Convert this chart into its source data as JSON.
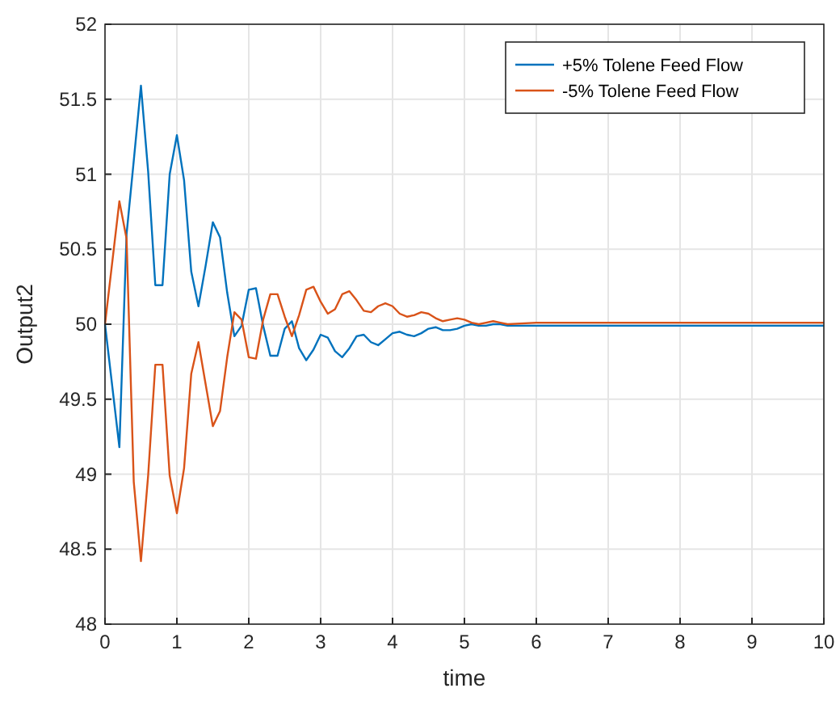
{
  "chart_data": {
    "type": "line",
    "xlabel": "time",
    "ylabel": "Output2",
    "x": [
      0,
      0.2,
      0.3,
      0.4,
      0.5,
      0.6,
      0.7,
      0.8,
      0.9,
      1.0,
      1.1,
      1.2,
      1.3,
      1.4,
      1.5,
      1.6,
      1.7,
      1.8,
      1.9,
      2.0,
      2.1,
      2.2,
      2.3,
      2.4,
      2.5,
      2.6,
      2.7,
      2.8,
      2.9,
      3.0,
      3.1,
      3.2,
      3.3,
      3.4,
      3.5,
      3.6,
      3.7,
      3.8,
      3.9,
      4.0,
      4.1,
      4.2,
      4.3,
      4.4,
      4.5,
      4.6,
      4.7,
      4.8,
      4.9,
      5.0,
      5.1,
      5.2,
      5.3,
      5.4,
      5.5,
      5.6,
      6,
      7,
      8,
      9,
      10
    ],
    "series": [
      {
        "name": "+5% Tolene Feed Flow",
        "color": "#0072bd",
        "values": [
          50,
          49.18,
          50.6,
          51.09,
          51.59,
          51.02,
          50.26,
          50.26,
          51.0,
          51.26,
          50.96,
          50.35,
          50.12,
          50.39,
          50.68,
          50.58,
          50.21,
          49.92,
          49.99,
          50.23,
          50.24,
          49.99,
          49.79,
          49.79,
          49.97,
          50.02,
          49.84,
          49.76,
          49.83,
          49.93,
          49.91,
          49.82,
          49.78,
          49.84,
          49.92,
          49.93,
          49.88,
          49.86,
          49.9,
          49.94,
          49.95,
          49.93,
          49.92,
          49.94,
          49.97,
          49.98,
          49.96,
          49.96,
          49.97,
          49.99,
          50.0,
          49.99,
          49.99,
          50.0,
          50.0,
          49.99,
          49.99,
          49.99,
          49.99,
          49.99,
          49.99
        ]
      },
      {
        "name": "-5% Tolene Feed Flow",
        "color": "#d95319",
        "values": [
          50,
          50.82,
          50.57,
          48.95,
          48.42,
          48.99,
          49.73,
          49.73,
          48.99,
          48.74,
          49.04,
          49.67,
          49.88,
          49.6,
          49.32,
          49.42,
          49.78,
          50.08,
          50.03,
          49.78,
          49.77,
          50.03,
          50.2,
          50.2,
          50.05,
          49.92,
          50.06,
          50.23,
          50.25,
          50.15,
          50.07,
          50.1,
          50.2,
          50.22,
          50.16,
          50.09,
          50.08,
          50.12,
          50.14,
          50.12,
          50.07,
          50.05,
          50.06,
          50.08,
          50.07,
          50.04,
          50.02,
          50.03,
          50.04,
          50.03,
          50.01,
          50.0,
          50.01,
          50.02,
          50.01,
          50.0,
          50.01,
          50.01,
          50.01,
          50.01,
          50.01
        ]
      }
    ],
    "xlim": [
      0,
      10
    ],
    "xticks": [
      0,
      1,
      2,
      3,
      4,
      5,
      6,
      7,
      8,
      9,
      10
    ],
    "ylim": [
      48,
      52
    ],
    "yticks": [
      48,
      48.5,
      49,
      49.5,
      50,
      50.5,
      51,
      51.5,
      52
    ],
    "grid": true,
    "legend": "top right",
    "line_style": "solid",
    "marker": "none"
  }
}
